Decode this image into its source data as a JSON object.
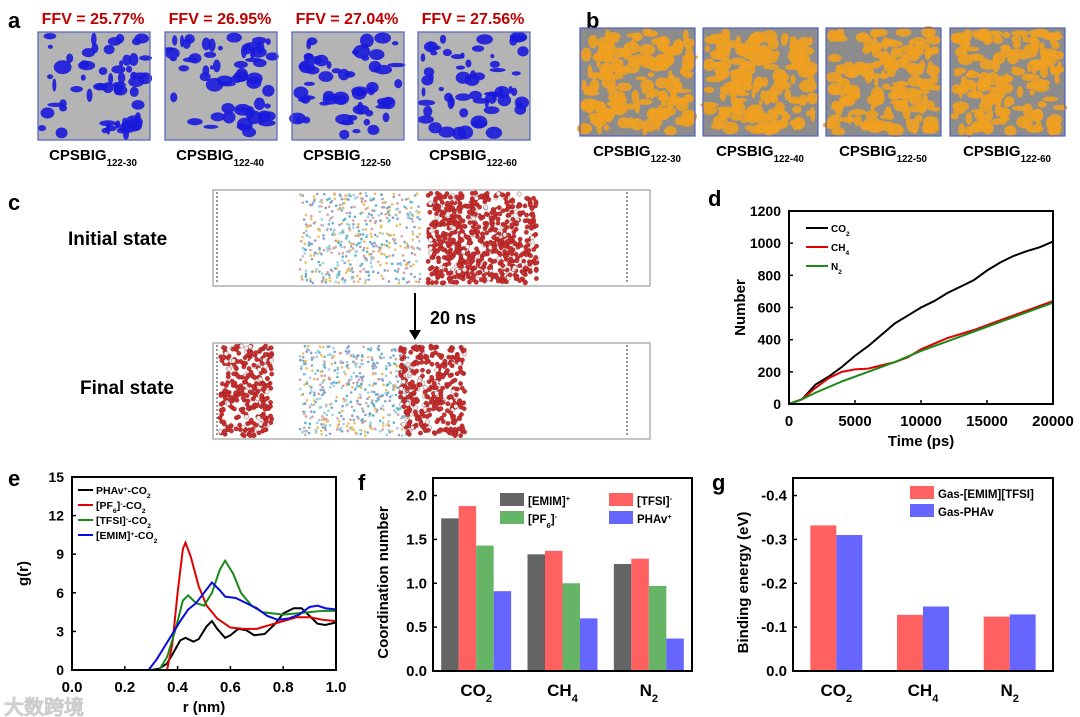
{
  "panel_labels": {
    "a": "a",
    "b": "b",
    "c": "c",
    "d": "d",
    "e": "e",
    "f": "f",
    "g": "g"
  },
  "panel_a": {
    "ffv": [
      "FFV = 25.77%",
      "FFV = 26.95%",
      "FFV = 27.04%",
      "FFV = 27.56%"
    ],
    "samples": [
      {
        "main": "CPSBIG",
        "sub": "122-30"
      },
      {
        "main": "CPSBIG",
        "sub": "122-40"
      },
      {
        "main": "CPSBIG",
        "sub": "122-50"
      },
      {
        "main": "CPSBIG",
        "sub": "122-60"
      }
    ],
    "colors": {
      "matrix": "#a8a8a8",
      "void": "#1a1adc",
      "ffv_text": "#c00000"
    }
  },
  "panel_b": {
    "samples": [
      {
        "main": "CPSBIG",
        "sub": "122-30"
      },
      {
        "main": "CPSBIG",
        "sub": "122-40"
      },
      {
        "main": "CPSBIG",
        "sub": "122-50"
      },
      {
        "main": "CPSBIG",
        "sub": "122-60"
      }
    ],
    "colors": {
      "matrix": "#8c8c8c",
      "gas": "#f0a020"
    }
  },
  "panel_c": {
    "initial_label": "Initial state",
    "final_label": "Final state",
    "arrow_label": "20 ns"
  },
  "chart_data": [
    {
      "id": "d",
      "type": "line",
      "title": "",
      "xlabel": "Time (ps)",
      "ylabel": "Number",
      "xlim": [
        0,
        20000
      ],
      "ylim": [
        0,
        1200
      ],
      "xticks": [
        0,
        5000,
        10000,
        15000,
        20000
      ],
      "yticks": [
        0,
        200,
        400,
        600,
        800,
        1000,
        1200
      ],
      "legend_position": "top-left",
      "series": [
        {
          "name": "CO",
          "sub": "2",
          "color": "#000000",
          "points": [
            [
              0,
              0
            ],
            [
              1000,
              30
            ],
            [
              2000,
              120
            ],
            [
              3000,
              170
            ],
            [
              4000,
              230
            ],
            [
              5000,
              300
            ],
            [
              6000,
              360
            ],
            [
              7000,
              430
            ],
            [
              8000,
              500
            ],
            [
              9000,
              550
            ],
            [
              10000,
              600
            ],
            [
              11000,
              640
            ],
            [
              12000,
              690
            ],
            [
              13000,
              730
            ],
            [
              14000,
              770
            ],
            [
              15000,
              830
            ],
            [
              16000,
              880
            ],
            [
              17000,
              920
            ],
            [
              18000,
              950
            ],
            [
              19000,
              975
            ],
            [
              20000,
              1010
            ]
          ]
        },
        {
          "name": "CH",
          "sub": "4",
          "color": "#e00000",
          "points": [
            [
              0,
              0
            ],
            [
              1000,
              30
            ],
            [
              2000,
              100
            ],
            [
              3000,
              160
            ],
            [
              4000,
              200
            ],
            [
              5000,
              215
            ],
            [
              6000,
              220
            ],
            [
              7000,
              240
            ],
            [
              8000,
              260
            ],
            [
              9000,
              290
            ],
            [
              10000,
              340
            ],
            [
              12000,
              410
            ],
            [
              14000,
              460
            ],
            [
              16000,
              520
            ],
            [
              18000,
              580
            ],
            [
              20000,
              640
            ]
          ]
        },
        {
          "name": "N",
          "sub": "2",
          "color": "#1a8a1a",
          "points": [
            [
              0,
              0
            ],
            [
              1000,
              30
            ],
            [
              2000,
              70
            ],
            [
              4000,
              140
            ],
            [
              6000,
              200
            ],
            [
              8000,
              260
            ],
            [
              10000,
              330
            ],
            [
              12000,
              390
            ],
            [
              14000,
              450
            ],
            [
              16000,
              510
            ],
            [
              18000,
              570
            ],
            [
              20000,
              630
            ]
          ]
        }
      ]
    },
    {
      "id": "e",
      "type": "line",
      "title": "",
      "xlabel": "r (nm)",
      "ylabel": "g(r)",
      "xlim": [
        0,
        1
      ],
      "ylim": [
        0,
        15
      ],
      "xticks": [
        "0.0",
        "0.2",
        "0.4",
        "0.6",
        "0.8",
        "1.0"
      ],
      "yticks": [
        0,
        3,
        6,
        9,
        12,
        15
      ],
      "legend_position": "top-left",
      "series": [
        {
          "name": "PHAv",
          "sup": "+",
          "tail": "-CO",
          "sub2": "2",
          "color": "#000000",
          "points": [
            [
              0.3,
              0
            ],
            [
              0.33,
              0.1
            ],
            [
              0.36,
              0.5
            ],
            [
              0.38,
              1.2
            ],
            [
              0.41,
              2.3
            ],
            [
              0.43,
              2.5
            ],
            [
              0.46,
              2.2
            ],
            [
              0.48,
              2.4
            ],
            [
              0.51,
              3.4
            ],
            [
              0.53,
              3.8
            ],
            [
              0.55,
              3.2
            ],
            [
              0.58,
              2.5
            ],
            [
              0.6,
              2.7
            ],
            [
              0.63,
              3.2
            ],
            [
              0.66,
              3.1
            ],
            [
              0.69,
              2.7
            ],
            [
              0.73,
              2.8
            ],
            [
              0.77,
              3.6
            ],
            [
              0.8,
              4.4
            ],
            [
              0.84,
              4.8
            ],
            [
              0.87,
              4.8
            ],
            [
              0.9,
              4.2
            ],
            [
              0.93,
              3.6
            ],
            [
              0.96,
              3.5
            ],
            [
              1.0,
              3.7
            ]
          ]
        },
        {
          "name": "[PF",
          "sub": "6",
          "mid": "]",
          "sup": "-",
          "tail": "-CO",
          "sub2": "2",
          "color": "#e00000",
          "points": [
            [
              0.36,
              0
            ],
            [
              0.38,
              2
            ],
            [
              0.4,
              6
            ],
            [
              0.42,
              9.4
            ],
            [
              0.43,
              9.9
            ],
            [
              0.45,
              8.8
            ],
            [
              0.48,
              6.5
            ],
            [
              0.51,
              5
            ],
            [
              0.55,
              4
            ],
            [
              0.6,
              3.3
            ],
            [
              0.65,
              3.2
            ],
            [
              0.7,
              3.2
            ],
            [
              0.75,
              3.5
            ],
            [
              0.8,
              3.8
            ],
            [
              0.85,
              4.1
            ],
            [
              0.9,
              4.1
            ],
            [
              0.95,
              3.9
            ],
            [
              1.0,
              3.8
            ]
          ]
        },
        {
          "name": "[TFSI]",
          "sup": "-",
          "tail": "-CO",
          "sub2": "2",
          "color": "#1a8a1a",
          "points": [
            [
              0.33,
              0
            ],
            [
              0.36,
              1
            ],
            [
              0.39,
              3
            ],
            [
              0.42,
              5.4
            ],
            [
              0.44,
              5.8
            ],
            [
              0.47,
              5.2
            ],
            [
              0.5,
              5.0
            ],
            [
              0.53,
              6
            ],
            [
              0.56,
              7.8
            ],
            [
              0.58,
              8.5
            ],
            [
              0.61,
              7.5
            ],
            [
              0.64,
              6
            ],
            [
              0.68,
              5
            ],
            [
              0.72,
              4.5
            ],
            [
              0.76,
              4.4
            ],
            [
              0.8,
              4.3
            ],
            [
              0.85,
              4.4
            ],
            [
              0.9,
              4.5
            ],
            [
              0.95,
              4.6
            ],
            [
              1.0,
              4.6
            ]
          ]
        },
        {
          "name": "[EMIM]",
          "sup": "+",
          "tail": "-CO",
          "sub2": "2",
          "color": "#0a0ae0",
          "points": [
            [
              0.29,
              0
            ],
            [
              0.32,
              0.8
            ],
            [
              0.35,
              1.8
            ],
            [
              0.38,
              2.8
            ],
            [
              0.41,
              3.8
            ],
            [
              0.44,
              4.7
            ],
            [
              0.47,
              5.2
            ],
            [
              0.5,
              6
            ],
            [
              0.53,
              6.8
            ],
            [
              0.56,
              6.2
            ],
            [
              0.58,
              5.7
            ],
            [
              0.62,
              5.6
            ],
            [
              0.66,
              5.2
            ],
            [
              0.7,
              4.8
            ],
            [
              0.74,
              4.2
            ],
            [
              0.78,
              3.9
            ],
            [
              0.82,
              4.0
            ],
            [
              0.86,
              4.3
            ],
            [
              0.9,
              4.9
            ],
            [
              0.93,
              5.0
            ],
            [
              0.96,
              4.8
            ],
            [
              1.0,
              4.7
            ]
          ]
        }
      ]
    },
    {
      "id": "f",
      "type": "bar",
      "title": "",
      "xlabel": "",
      "ylabel": "Coordination number",
      "ylim": [
        0,
        2.2
      ],
      "yticks": [
        "0.0",
        "0.5",
        "1.0",
        "1.5",
        "2.0"
      ],
      "categories": [
        {
          "name": "CO",
          "sub": "2"
        },
        {
          "name": "CH",
          "sub": "4"
        },
        {
          "name": "N",
          "sub": "2"
        }
      ],
      "legend_position": "top-right",
      "series": [
        {
          "name": "[EMIM]",
          "sup": "+",
          "color": "#646464",
          "values": [
            1.74,
            1.33,
            1.22
          ]
        },
        {
          "name": "[TFSI]",
          "sup": "-",
          "color": "#ff6060",
          "values": [
            1.88,
            1.37,
            1.28
          ]
        },
        {
          "name": "[PF",
          "sub": "6",
          "mid": "]",
          "sup": "-",
          "color": "#66b566",
          "values": [
            1.43,
            1.0,
            0.97
          ]
        },
        {
          "name": "PHAv",
          "sup": "+",
          "color": "#6666ff",
          "values": [
            0.91,
            0.6,
            0.37
          ]
        }
      ]
    },
    {
      "id": "g",
      "type": "bar",
      "title": "",
      "xlabel": "",
      "ylabel": "Binding energy (eV)",
      "ylim": [
        0,
        -0.44
      ],
      "yticks": [
        "0.0",
        "-0.1",
        "-0.2",
        "-0.3",
        "-0.4"
      ],
      "categories": [
        {
          "name": "CO",
          "sub": "2"
        },
        {
          "name": "CH",
          "sub": "4"
        },
        {
          "name": "N",
          "sub": "2"
        }
      ],
      "legend_position": "top-right",
      "series": [
        {
          "name": "Gas-[EMIM][TFSI]",
          "color": "#ff6060",
          "values": [
            -0.332,
            -0.128,
            -0.124
          ]
        },
        {
          "name": "Gas-PHAv",
          "color": "#6666ff",
          "values": [
            -0.31,
            -0.147,
            -0.129
          ]
        }
      ]
    }
  ],
  "watermark": "大数跨境"
}
